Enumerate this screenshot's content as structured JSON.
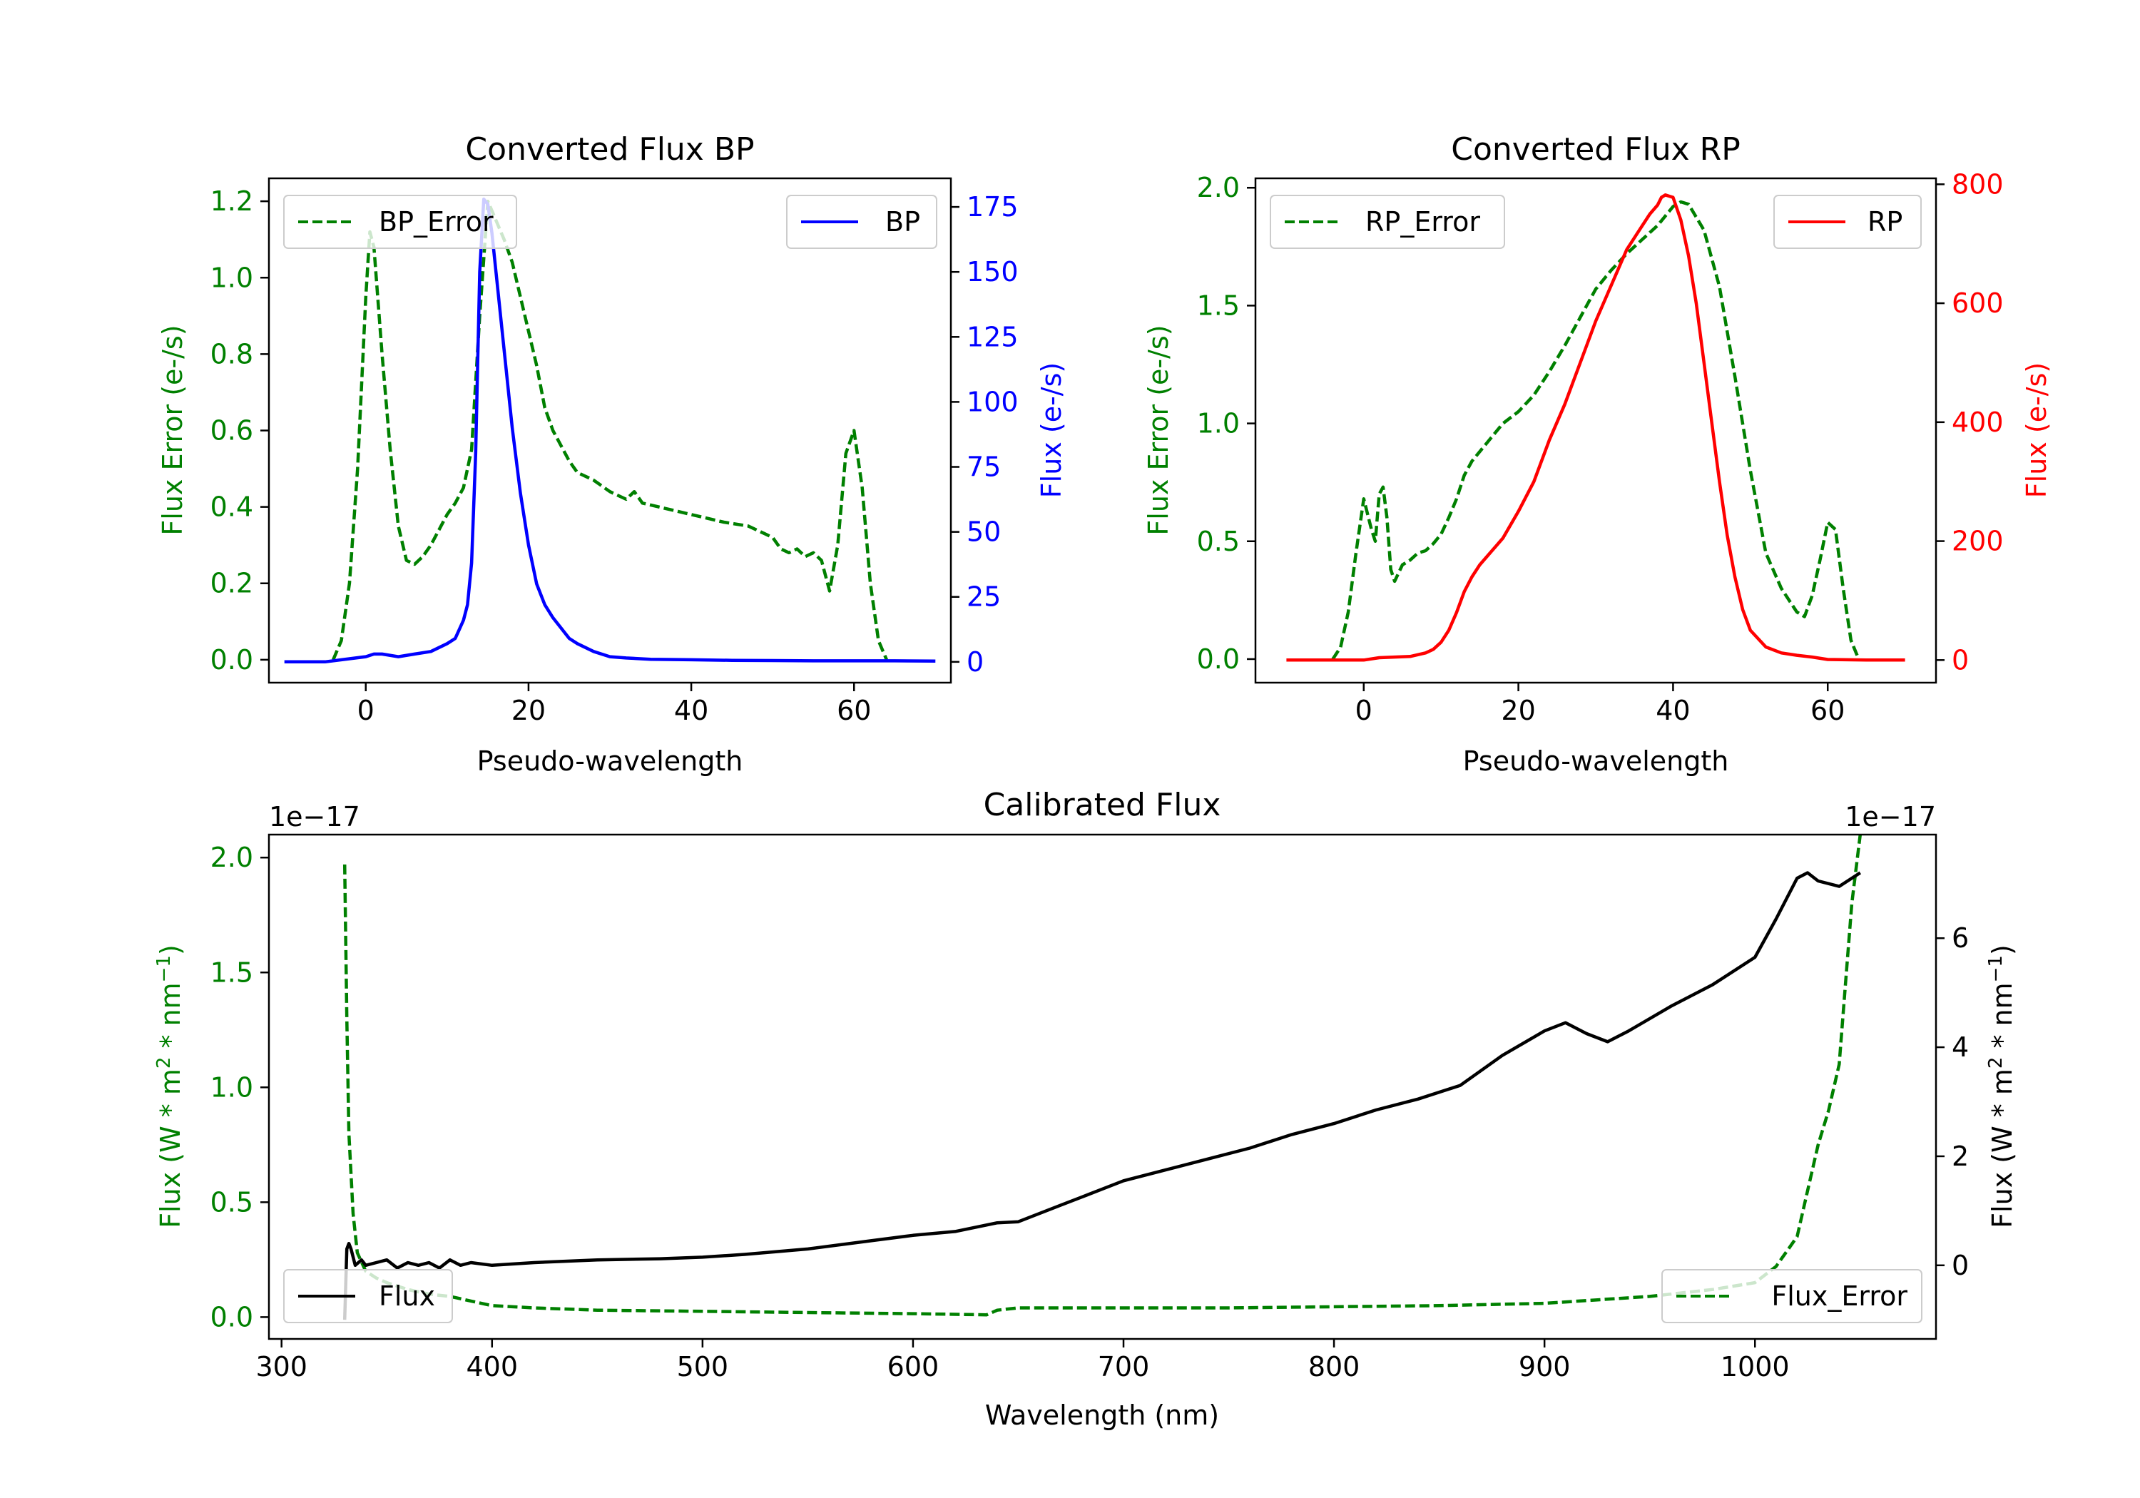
{
  "chart_data": [
    {
      "type": "line",
      "title": "Converted Flux BP",
      "xlabel": "Pseudo-wavelength",
      "ylabel_left": "Flux Error (e-/s)",
      "ylabel_right": "Flux (e-/s)",
      "xlim": [
        -11.9,
        71.9
      ],
      "ylim_left": [
        -0.06,
        1.26
      ],
      "ylim_right": [
        -8,
        186
      ],
      "xticks": [
        "0",
        "20",
        "40",
        "60"
      ],
      "yticks_left": [
        "0.0",
        "0.2",
        "0.4",
        "0.6",
        "0.8",
        "1.0",
        "1.2"
      ],
      "yticks_right": [
        "0",
        "25",
        "50",
        "75",
        "100",
        "125",
        "150",
        "175"
      ],
      "colors": {
        "error": "#008000",
        "flux": "#0000ff",
        "left_axis": "#008000",
        "right_axis": "#0000ff"
      },
      "series": [
        {
          "name": "BP_Error",
          "axis": "left",
          "style": "dashed",
          "x": [
            -4,
            -3,
            -2,
            -1,
            0,
            0.5,
            1,
            2,
            3,
            4,
            5,
            6,
            7,
            8,
            9,
            10,
            11,
            12,
            13,
            14,
            15,
            16,
            17,
            18,
            19,
            20,
            21,
            22,
            23,
            24,
            25,
            26,
            28,
            30,
            32,
            33,
            34,
            36,
            40,
            44,
            47,
            49,
            50,
            51,
            52,
            53,
            54,
            55,
            56,
            57,
            58,
            59,
            60,
            61,
            62,
            63,
            64
          ],
          "y": [
            0.0,
            0.05,
            0.2,
            0.5,
            0.95,
            1.12,
            1.08,
            0.8,
            0.55,
            0.35,
            0.26,
            0.25,
            0.27,
            0.3,
            0.34,
            0.38,
            0.41,
            0.45,
            0.55,
            0.9,
            1.2,
            1.15,
            1.1,
            1.04,
            0.95,
            0.86,
            0.77,
            0.66,
            0.6,
            0.56,
            0.52,
            0.49,
            0.47,
            0.44,
            0.42,
            0.44,
            0.41,
            0.4,
            0.38,
            0.36,
            0.35,
            0.33,
            0.32,
            0.29,
            0.28,
            0.29,
            0.27,
            0.28,
            0.26,
            0.18,
            0.3,
            0.54,
            0.6,
            0.45,
            0.2,
            0.05,
            0.0
          ]
        },
        {
          "name": "BP",
          "axis": "right",
          "style": "solid",
          "x": [
            -10,
            -5,
            0,
            1,
            2,
            4,
            6,
            8,
            10,
            11,
            12,
            12.5,
            13,
            13.5,
            14,
            14.5,
            15,
            15.5,
            16,
            17,
            18,
            19,
            20,
            21,
            22,
            23,
            24,
            25,
            26,
            28,
            30,
            32,
            35,
            40,
            45,
            50,
            55,
            60,
            65,
            70
          ],
          "y": [
            0,
            0,
            2,
            3,
            3,
            2,
            3,
            4,
            7,
            9,
            16,
            22,
            38,
            80,
            150,
            178,
            176,
            165,
            150,
            120,
            90,
            65,
            45,
            30,
            22,
            17,
            13,
            9,
            7,
            4,
            2,
            1.5,
            1,
            0.8,
            0.6,
            0.5,
            0.4,
            0.4,
            0.4,
            0.3
          ]
        }
      ],
      "legend": [
        "BP_Error",
        "BP"
      ],
      "legend_positions": [
        "top-left",
        "top-right"
      ]
    },
    {
      "type": "line",
      "title": "Converted Flux RP",
      "xlabel": "Pseudo-wavelength",
      "ylabel_left": "Flux Error (e-/s)",
      "ylabel_right": "Flux (e-/s)",
      "xlim": [
        -14,
        74
      ],
      "ylim_left": [
        -0.1,
        2.04
      ],
      "ylim_right": [
        -38,
        810
      ],
      "xticks": [
        "0",
        "20",
        "40",
        "60"
      ],
      "yticks_left": [
        "0.0",
        "0.5",
        "1.0",
        "1.5",
        "2.0"
      ],
      "yticks_right": [
        "0",
        "200",
        "400",
        "600",
        "800"
      ],
      "colors": {
        "error": "#008000",
        "flux": "#ff0000",
        "left_axis": "#008000",
        "right_axis": "#ff0000"
      },
      "series": [
        {
          "name": "RP_Error",
          "axis": "left",
          "style": "dashed",
          "x": [
            -4,
            -3,
            -2,
            -1,
            0,
            1,
            1.5,
            2,
            2.5,
            3,
            3.5,
            4,
            5,
            6,
            7,
            8,
            9,
            10,
            11,
            12,
            13,
            14,
            16,
            18,
            20,
            22,
            24,
            26,
            28,
            30,
            32,
            34,
            36,
            38,
            40,
            41,
            42,
            44,
            46,
            48,
            50,
            52,
            54,
            56,
            57,
            58,
            59,
            60,
            61,
            62,
            63,
            64
          ],
          "y": [
            0.0,
            0.05,
            0.2,
            0.45,
            0.68,
            0.55,
            0.5,
            0.7,
            0.73,
            0.6,
            0.38,
            0.33,
            0.4,
            0.42,
            0.45,
            0.46,
            0.49,
            0.53,
            0.6,
            0.68,
            0.78,
            0.84,
            0.92,
            1.0,
            1.05,
            1.12,
            1.22,
            1.33,
            1.45,
            1.57,
            1.65,
            1.72,
            1.78,
            1.84,
            1.92,
            1.94,
            1.93,
            1.82,
            1.58,
            1.2,
            0.8,
            0.45,
            0.3,
            0.2,
            0.18,
            0.27,
            0.42,
            0.58,
            0.55,
            0.3,
            0.08,
            0.0
          ]
        },
        {
          "name": "RP",
          "axis": "right",
          "style": "solid",
          "x": [
            -10,
            -5,
            0,
            2,
            4,
            6,
            8,
            9,
            10,
            11,
            12,
            13,
            14,
            15,
            16,
            18,
            20,
            22,
            24,
            26,
            28,
            30,
            32,
            34,
            36,
            37,
            38,
            38.5,
            39,
            39.5,
            40,
            41,
            42,
            43,
            44,
            45,
            46,
            47,
            48,
            49,
            50,
            52,
            54,
            56,
            58,
            60,
            65,
            70
          ],
          "y": [
            0,
            0,
            0,
            4,
            5,
            6,
            12,
            18,
            30,
            50,
            80,
            115,
            140,
            160,
            175,
            205,
            250,
            300,
            370,
            430,
            500,
            570,
            630,
            690,
            730,
            750,
            765,
            778,
            782,
            780,
            778,
            740,
            680,
            600,
            500,
            400,
            300,
            210,
            140,
            85,
            50,
            22,
            12,
            8,
            5,
            1,
            0,
            0
          ]
        }
      ],
      "legend": [
        "RP_Error",
        "RP"
      ],
      "legend_positions": [
        "top-left",
        "top-right"
      ]
    },
    {
      "type": "line",
      "title": "Calibrated Flux",
      "xlabel": "Wavelength (nm)",
      "ylabel_left": "Flux (W * m² * nm⁻¹)",
      "ylabel_right": "Flux (W * m² * nm⁻¹)",
      "offset_left": "1e−17",
      "offset_right": "1e−17",
      "xlim": [
        294,
        1086
      ],
      "ylim_left": [
        -0.095,
        2.1
      ],
      "ylim_right": [
        -1.35,
        7.9
      ],
      "xticks": [
        "300",
        "400",
        "500",
        "600",
        "700",
        "800",
        "900",
        "1000"
      ],
      "yticks_left": [
        "0.0",
        "0.5",
        "1.0",
        "1.5",
        "2.0"
      ],
      "yticks_right": [
        "0",
        "2",
        "4",
        "6"
      ],
      "colors": {
        "error": "#008000",
        "flux": "#000000",
        "left_axis": "#008000",
        "right_axis": "#000000"
      },
      "series": [
        {
          "name": "Flux_Error",
          "axis": "left",
          "style": "dashed",
          "x": [
            330,
            331,
            332,
            334,
            336,
            340,
            345,
            350,
            360,
            370,
            380,
            390,
            400,
            420,
            450,
            500,
            550,
            600,
            635,
            640,
            650,
            700,
            750,
            800,
            850,
            900,
            950,
            980,
            1000,
            1010,
            1020,
            1025,
            1030,
            1035,
            1040,
            1043,
            1046,
            1050
          ],
          "y": [
            1.97,
            1.3,
            0.8,
            0.45,
            0.28,
            0.2,
            0.17,
            0.15,
            0.12,
            0.1,
            0.09,
            0.07,
            0.05,
            0.04,
            0.03,
            0.025,
            0.02,
            0.015,
            0.01,
            0.03,
            0.04,
            0.04,
            0.04,
            0.045,
            0.05,
            0.06,
            0.09,
            0.12,
            0.15,
            0.22,
            0.35,
            0.55,
            0.75,
            0.9,
            1.1,
            1.45,
            1.8,
            2.1
          ]
        },
        {
          "name": "Flux",
          "axis": "right",
          "style": "solid",
          "x": [
            330,
            331,
            332,
            333,
            335,
            338,
            340,
            345,
            350,
            355,
            360,
            365,
            370,
            375,
            380,
            385,
            390,
            400,
            420,
            450,
            480,
            500,
            520,
            550,
            580,
            600,
            620,
            640,
            650,
            660,
            670,
            680,
            690,
            700,
            720,
            740,
            760,
            780,
            800,
            820,
            840,
            860,
            880,
            900,
            910,
            920,
            930,
            940,
            960,
            980,
            1000,
            1010,
            1020,
            1025,
            1030,
            1040,
            1050
          ],
          "y": [
            -1.0,
            0.3,
            0.4,
            0.3,
            0.0,
            0.1,
            0.0,
            0.05,
            0.1,
            -0.05,
            0.05,
            0.0,
            0.05,
            -0.05,
            0.1,
            0.0,
            0.05,
            0.0,
            0.05,
            0.1,
            0.12,
            0.15,
            0.2,
            0.3,
            0.45,
            0.55,
            0.62,
            0.78,
            0.8,
            0.95,
            1.1,
            1.25,
            1.4,
            1.55,
            1.75,
            1.95,
            2.15,
            2.4,
            2.6,
            2.85,
            3.05,
            3.3,
            3.85,
            4.3,
            4.45,
            4.25,
            4.1,
            4.3,
            4.75,
            5.15,
            5.65,
            6.35,
            7.1,
            7.2,
            7.05,
            6.95,
            7.2
          ]
        }
      ],
      "legend": [
        "Flux",
        "Flux_Error"
      ],
      "legend_positions": [
        "bottom-left",
        "bottom-right"
      ]
    }
  ]
}
